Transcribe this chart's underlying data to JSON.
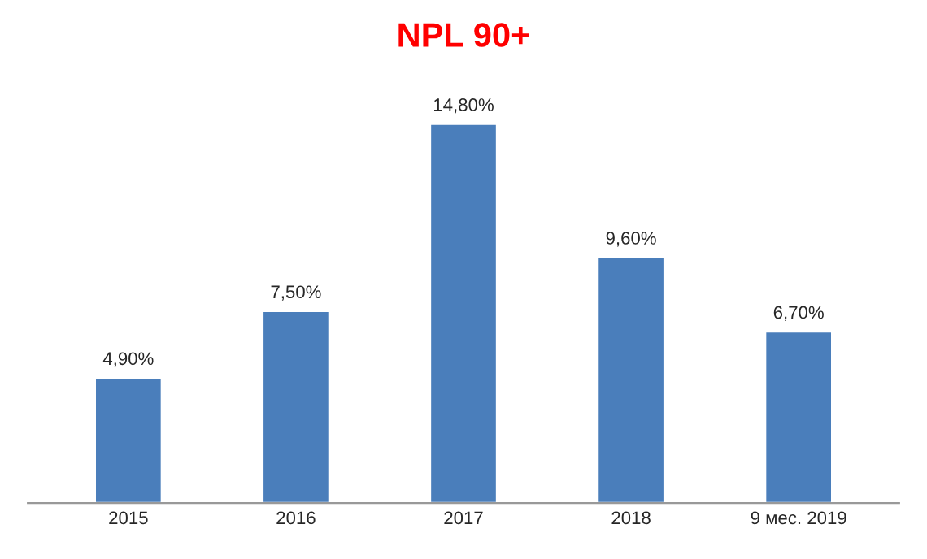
{
  "chart_data": {
    "type": "bar",
    "title": "NPL 90+",
    "categories": [
      "2015",
      "2016",
      "2017",
      "2018",
      "9 мес. 2019"
    ],
    "values": [
      4.9,
      7.5,
      14.8,
      9.6,
      6.7
    ],
    "value_labels": [
      "4,90%",
      "7,50%",
      "14,80%",
      "9,60%",
      "6,70%"
    ],
    "color": "#4a7ebb"
  }
}
